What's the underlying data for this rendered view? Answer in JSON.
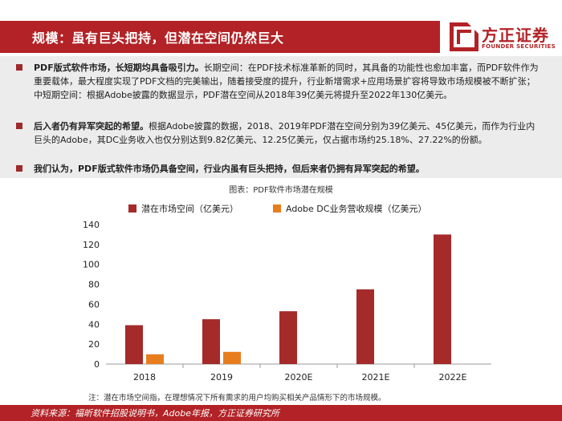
{
  "header": {
    "title": "规模：虽有巨头把持，但潜在空间仍然巨大",
    "logo_cn": "方正证券",
    "logo_en": "FOUNDER SECURITIES"
  },
  "bullets": [
    {
      "bold": "PDF版式软件市场，长短期均具备吸引力。",
      "text": "长期空间：在PDF技术标准革新的同时，其具备的功能性也愈加丰富，而PDF软件作为重要载体，最大程度实现了PDF文档的完美输出，随着接受度的提升，行业新增需求+应用场景扩容将导致市场规模被不断扩张；中短期空间：根据Adobe披露的数据显示，PDF潜在空间从2018年39亿美元将提升至2022年130亿美元。"
    },
    {
      "bold": "后入者仍有异军突起的希望。",
      "text": "根据Adobe披露的数据，2018、2019年PDF潜在空间分别为39亿美元、45亿美元，而作为行业内巨头的Adobe，其DC业务收入也仅分别达到9.82亿美元、12.25亿美元，仅占据市场约25.18%、27.22%的份额。"
    },
    {
      "bold": "我们认为，PDF版式软件市场仍具备空间，行业内虽有巨头把持，但后来者仍拥有异军突起的希望。",
      "text": ""
    }
  ],
  "chart_caption": "图表：PDF软件市场潜在规模",
  "chart_data": {
    "type": "bar",
    "categories": [
      "2018",
      "2019",
      "2020E",
      "2021E",
      "2022E"
    ],
    "series": [
      {
        "name": "潜在市场空间（亿美元）",
        "color": "#a52a2a",
        "values": [
          39,
          45,
          53,
          75,
          130
        ]
      },
      {
        "name": "Adobe DC业务营收规模（亿美元）",
        "color": "#e87d1e",
        "values": [
          9.82,
          12.25,
          null,
          null,
          null
        ]
      }
    ],
    "ylim": [
      0,
      140
    ],
    "yticks": [
      0,
      20,
      40,
      60,
      80,
      100,
      120,
      140
    ],
    "grid": false,
    "legend": "top"
  },
  "note": "注：潜在市场空间指，在理想情况下所有需求的用户均购买相关产品情形下的市场规模。",
  "footer": "资料来源：福昕软件招股说明书，Adobe年报，方正证券研究所"
}
